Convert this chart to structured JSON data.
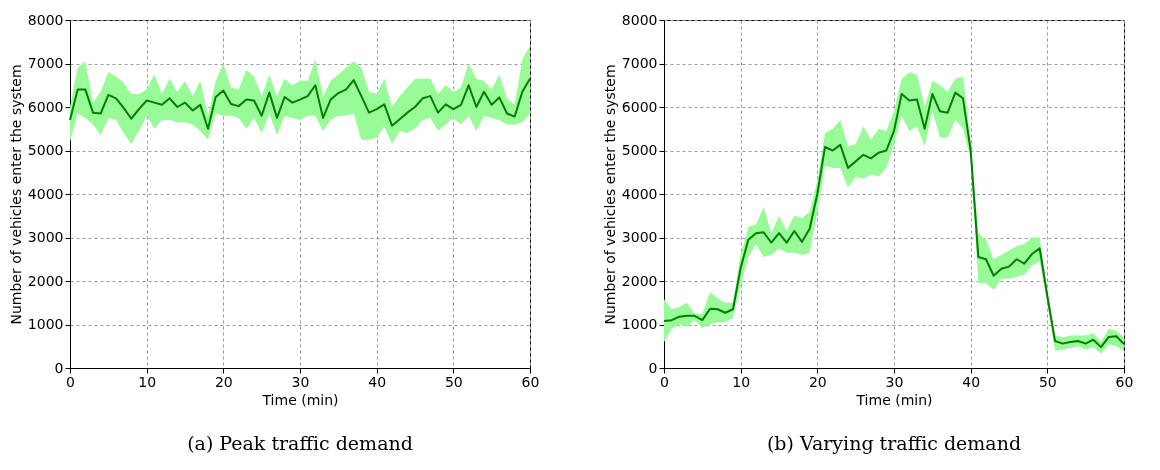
{
  "chart_data": [
    {
      "type": "line",
      "title": "(a) Peak traffic demand",
      "xlabel": "Time (min)",
      "ylabel": "Number of vehicles enter the system",
      "x": [
        0,
        1,
        2,
        3,
        4,
        5,
        6,
        7,
        8,
        9,
        10,
        11,
        12,
        13,
        14,
        15,
        16,
        17,
        18,
        19,
        20,
        21,
        22,
        23,
        24,
        25,
        26,
        27,
        28,
        29,
        30,
        31,
        32,
        33,
        34,
        35,
        36,
        37,
        38,
        39,
        40,
        41,
        42,
        43,
        44,
        45,
        46,
        47,
        48,
        49,
        50,
        51,
        52,
        53,
        54,
        55,
        56,
        57,
        58,
        59,
        60
      ],
      "xlim": [
        0,
        60
      ],
      "xticks": [
        0,
        10,
        20,
        30,
        40,
        50,
        60
      ],
      "ylim": [
        0,
        8000
      ],
      "yticks": [
        0,
        1000,
        2000,
        3000,
        4000,
        5000,
        6000,
        7000,
        8000
      ],
      "grid": true,
      "series": [
        {
          "color": "#007f00",
          "values": [
            5700,
            6400,
            6400,
            5870,
            5850,
            6280,
            6200,
            5980,
            5730,
            5950,
            6150,
            6100,
            6050,
            6200,
            6000,
            6100,
            5920,
            6050,
            5500,
            6230,
            6380,
            6070,
            6020,
            6170,
            6150,
            5800,
            6330,
            5750,
            6230,
            6100,
            6170,
            6250,
            6500,
            5750,
            6170,
            6320,
            6400,
            6620,
            6250,
            5870,
            5950,
            6060,
            5570,
            5720,
            5870,
            6000,
            6200,
            6250,
            5870,
            6060,
            5950,
            6050,
            6500,
            6000,
            6350,
            6050,
            6220,
            5850,
            5780,
            6350,
            6650
          ],
          "upper": [
            6000,
            6900,
            7050,
            6100,
            6350,
            6800,
            6700,
            6550,
            6300,
            6300,
            6400,
            6750,
            6300,
            6650,
            6350,
            6600,
            6250,
            6600,
            5800,
            6600,
            7000,
            6450,
            6400,
            6850,
            6700,
            6250,
            6750,
            6250,
            6650,
            6500,
            6600,
            6600,
            7100,
            6250,
            6600,
            6750,
            6900,
            7050,
            6900,
            6350,
            6300,
            6650,
            6000,
            6250,
            6450,
            6650,
            6650,
            6650,
            6300,
            6500,
            6350,
            6450,
            7000,
            6650,
            6600,
            6400,
            6750,
            6200,
            6050,
            7100,
            7400
          ],
          "lower": [
            5200,
            5850,
            5750,
            5600,
            5350,
            5750,
            5700,
            5400,
            5150,
            5450,
            5800,
            5500,
            5700,
            5700,
            5650,
            5650,
            5600,
            5450,
            5250,
            5850,
            5800,
            5800,
            5750,
            5500,
            5750,
            5400,
            5850,
            5350,
            5800,
            5750,
            5700,
            5800,
            5800,
            5450,
            5700,
            5800,
            5800,
            5850,
            5250,
            5250,
            5300,
            5550,
            5150,
            5450,
            5400,
            5500,
            5700,
            5750,
            5450,
            5600,
            5750,
            5600,
            5800,
            5450,
            5800,
            5750,
            5700,
            5600,
            5600,
            5650,
            5850
          ]
        }
      ]
    },
    {
      "type": "line",
      "title": "(b) Varying traffic demand",
      "xlabel": "Time (min)",
      "ylabel": "Number of vehicles enter the system",
      "x": [
        0,
        1,
        2,
        3,
        4,
        5,
        6,
        7,
        8,
        9,
        10,
        11,
        12,
        13,
        14,
        15,
        16,
        17,
        18,
        19,
        20,
        21,
        22,
        23,
        24,
        25,
        26,
        27,
        28,
        29,
        30,
        31,
        32,
        33,
        34,
        35,
        36,
        37,
        38,
        39,
        40,
        41,
        42,
        43,
        44,
        45,
        46,
        47,
        48,
        49,
        50,
        51,
        52,
        53,
        54,
        55,
        56,
        57,
        58,
        59,
        60
      ],
      "xlim": [
        0,
        60
      ],
      "xticks": [
        0,
        10,
        20,
        30,
        40,
        50,
        60
      ],
      "ylim": [
        0,
        8000
      ],
      "yticks": [
        0,
        1000,
        2000,
        3000,
        4000,
        5000,
        6000,
        7000,
        8000
      ],
      "grid": true,
      "series": [
        {
          "color": "#007f00",
          "values": [
            1080,
            1100,
            1180,
            1200,
            1200,
            1100,
            1360,
            1350,
            1270,
            1350,
            2300,
            2950,
            3100,
            3120,
            2880,
            3100,
            2880,
            3150,
            2900,
            3200,
            4000,
            5080,
            5000,
            5130,
            4600,
            4750,
            4900,
            4820,
            4950,
            5000,
            5450,
            6300,
            6150,
            6170,
            5500,
            6300,
            5900,
            5870,
            6330,
            6200,
            5000,
            2550,
            2500,
            2120,
            2280,
            2330,
            2500,
            2400,
            2620,
            2750,
            1650,
            620,
            560,
            600,
            620,
            560,
            650,
            480,
            710,
            730,
            550
          ],
          "upper": [
            1580,
            1350,
            1400,
            1500,
            1250,
            1250,
            1750,
            1600,
            1500,
            1500,
            2600,
            3250,
            3300,
            3700,
            3100,
            3500,
            3150,
            3500,
            3450,
            3600,
            4300,
            5400,
            5500,
            5700,
            5100,
            5150,
            5550,
            5250,
            5500,
            5450,
            5900,
            6650,
            6800,
            6750,
            6000,
            6600,
            6500,
            6350,
            6650,
            6700,
            5200,
            3100,
            2950,
            2500,
            2600,
            2700,
            2800,
            2850,
            3000,
            3000,
            1800,
            750,
            700,
            750,
            750,
            750,
            800,
            600,
            900,
            850,
            700
          ],
          "lower": [
            600,
            900,
            1000,
            950,
            1100,
            920,
            1000,
            1050,
            1050,
            1150,
            1900,
            2550,
            2850,
            2550,
            2600,
            2750,
            2650,
            2650,
            2600,
            2650,
            3600,
            4650,
            4600,
            4600,
            4150,
            4400,
            4350,
            4450,
            4400,
            4600,
            5150,
            5800,
            5450,
            5550,
            5100,
            5900,
            5300,
            5300,
            5700,
            5500,
            4800,
            1950,
            1950,
            1800,
            2050,
            2050,
            2100,
            2150,
            2350,
            2450,
            1500,
            400,
            420,
            460,
            500,
            420,
            480,
            330,
            540,
            500,
            380
          ]
        }
      ]
    }
  ]
}
